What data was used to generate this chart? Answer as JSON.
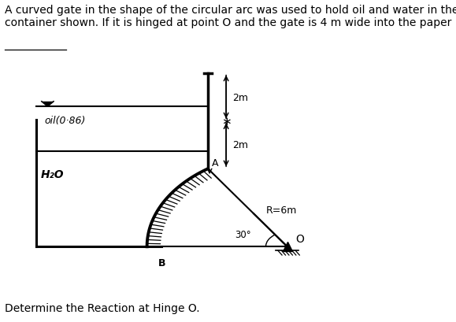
{
  "title_text": "A curved gate in the shape of the circular arc was used to hold oil and water in the\ncontainer shown. If it is hinged at point O and the gate is 4 m wide into the paper",
  "bottom_text": "Determine the Reaction at Hinge O.",
  "bg_color": "#c0c0c0",
  "outer_bg": "#ffffff",
  "oil_label": "oil(0·86)",
  "water_label": "H₂O",
  "label_A": "A",
  "label_B": "B",
  "label_O": "O",
  "label_R": "R=6m",
  "label_30": "30°",
  "dim_2m_top": "2m",
  "dim_2m_bot": "2m",
  "title_fontsize": 10,
  "diagram_fontsize": 9
}
